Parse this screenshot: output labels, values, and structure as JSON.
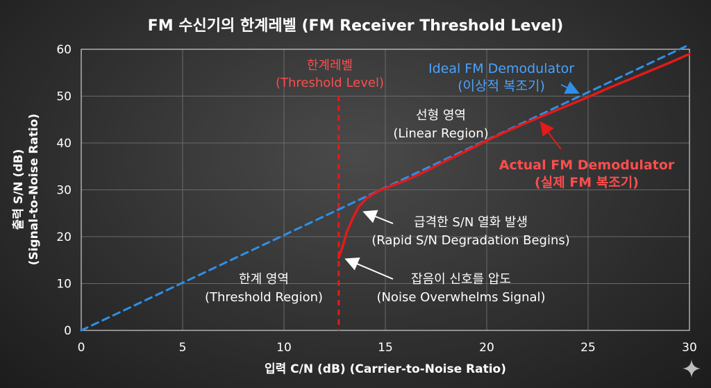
{
  "chart_data": {
    "type": "line",
    "title": "FM 수신기의 한계레벨 (FM Receiver Threshold Level)",
    "xlabel": "입력 C/N (dB) (Carrier-to-Noise Ratio)",
    "ylabel_line1": "출력 S/N (dB)",
    "ylabel_line2": "(Signal-to-Noise Ratio)",
    "xlim": [
      0,
      30
    ],
    "ylim": [
      0,
      60
    ],
    "xticks": [
      0,
      5,
      10,
      15,
      20,
      25,
      30
    ],
    "yticks": [
      0,
      10,
      20,
      30,
      40,
      50,
      60
    ],
    "grid": true,
    "series": [
      {
        "name": "Ideal FM Demodulator (이상적 복조기)",
        "style": "dashed",
        "color": "#2f8fe8",
        "x": [
          0,
          30
        ],
        "y": [
          0,
          61
        ]
      },
      {
        "name": "Actual FM Demodulator (실제 FM 복조기)",
        "style": "solid",
        "color": "#e21b1b",
        "x": [
          12.7,
          12.9,
          13.1,
          13.4,
          13.7,
          14.1,
          14.6,
          15.2,
          16,
          17,
          18,
          19,
          20,
          21,
          22,
          23,
          24,
          25,
          26,
          27,
          28,
          29,
          30
        ],
        "y": [
          15.5,
          18,
          21,
          24,
          26.5,
          28.3,
          29.6,
          30.7,
          32,
          34,
          36.2,
          38.3,
          40.5,
          42.5,
          44.4,
          46.2,
          48,
          49.8,
          51.7,
          53.5,
          55.3,
          57.1,
          59
        ]
      }
    ],
    "threshold": {
      "x": 12.7,
      "color": "#e21b1b",
      "label_line1": "한계레벨",
      "label_line2": "(Threshold Level)"
    },
    "annotations": {
      "ideal_line1": "Ideal FM Demodulator",
      "ideal_line2": "(이상적 복조기)",
      "actual_line1": "Actual FM Demodulator",
      "actual_line2": "(실제 FM 복조기)",
      "linear_line1": "선형 영역",
      "linear_line2": "(Linear Region)",
      "rapid_line1": "급격한 S/N 열화 발생",
      "rapid_line2": "(Rapid S/N Degradation Begins)",
      "noise_line1": "잡음이 신호를 압도",
      "noise_line2": "(Noise Overwhelms Signal)",
      "threshold_region_line1": "한계 영역",
      "threshold_region_line2": "(Threshold Region)"
    }
  }
}
